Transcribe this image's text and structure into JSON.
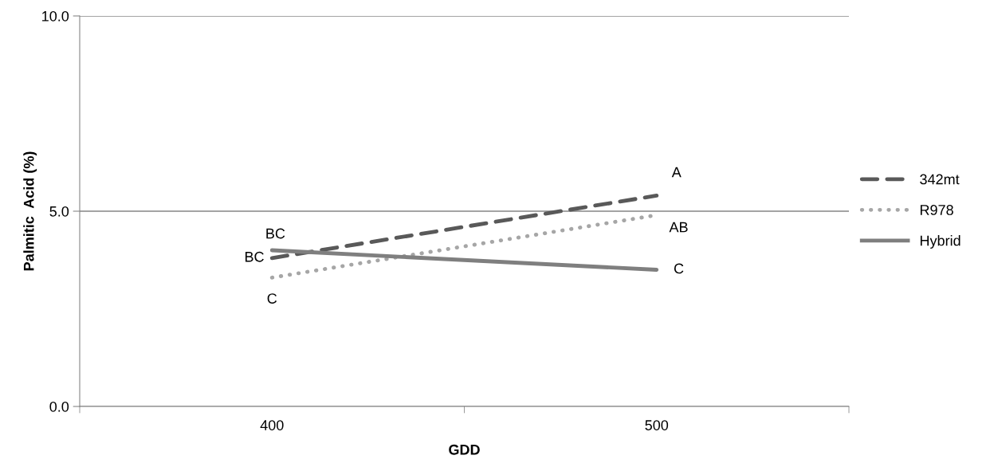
{
  "chart_data": {
    "type": "line",
    "xlabel": "GDD",
    "ylabel": "Palmitic  Acid (%)",
    "categories": [
      "400",
      "500"
    ],
    "series": [
      {
        "name": "342mt",
        "color": "#595959",
        "values": [
          3.8,
          5.4
        ],
        "line_style": "dashed"
      },
      {
        "name": "R978",
        "color": "#a6a6a6",
        "values": [
          3.3,
          4.9
        ],
        "line_style": "dotted"
      },
      {
        "name": "Hybrid",
        "color": "#7f7f7f",
        "values": [
          4.0,
          3.5
        ],
        "line_style": "solid"
      }
    ],
    "ylim": [
      0,
      10
    ],
    "yticks": [
      {
        "value": 0,
        "label": "0.0"
      },
      {
        "value": 5,
        "label": "5.0"
      },
      {
        "value": 10,
        "label": "10.0"
      }
    ],
    "grid": "y",
    "legend": "right",
    "marker": "none",
    "annotations": [
      {
        "text": "BC",
        "x": "400",
        "y": 4.0
      },
      {
        "text": "BC",
        "x": "400",
        "y": 3.8
      },
      {
        "text": "C",
        "x": "400",
        "y": 3.3
      },
      {
        "text": "A",
        "x": "500",
        "y": 5.4
      },
      {
        "text": "AB",
        "x": "500",
        "y": 4.9
      },
      {
        "text": "C",
        "x": "500",
        "y": 3.5
      }
    ]
  }
}
